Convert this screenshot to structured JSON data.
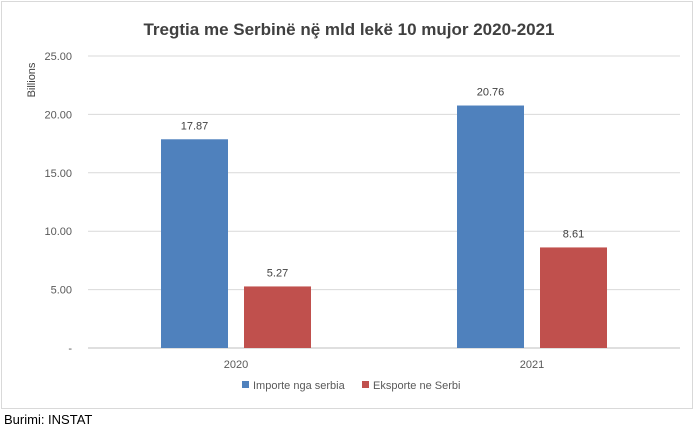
{
  "chart_data": {
    "type": "bar",
    "title": "Tregtia me Serbinë nȩ̈ mld lekë 10 mujor 2020-2021",
    "ylabel": "Billions",
    "xlabel": "",
    "categories": [
      "2020",
      "2021"
    ],
    "series": [
      {
        "name": "Importe nga serbia",
        "values": [
          17.87,
          20.76
        ],
        "color": "#4f81bd"
      },
      {
        "name": "Eksporte ne Serbi",
        "values": [
          5.27,
          8.61
        ],
        "color": "#c0504d"
      }
    ],
    "value_labels": [
      [
        "17.87",
        "20.76"
      ],
      [
        "5.27",
        "8.61"
      ]
    ],
    "ylim": [
      0,
      25
    ],
    "yticks": [
      0,
      5,
      10,
      15,
      20,
      25
    ],
    "ytick_labels": [
      "-",
      "5.00",
      "10.00",
      "15.00",
      "20.00",
      "25.00"
    ],
    "grid": true,
    "legend_position": "bottom"
  },
  "footer": {
    "source": "Burimi: INSTAT"
  }
}
